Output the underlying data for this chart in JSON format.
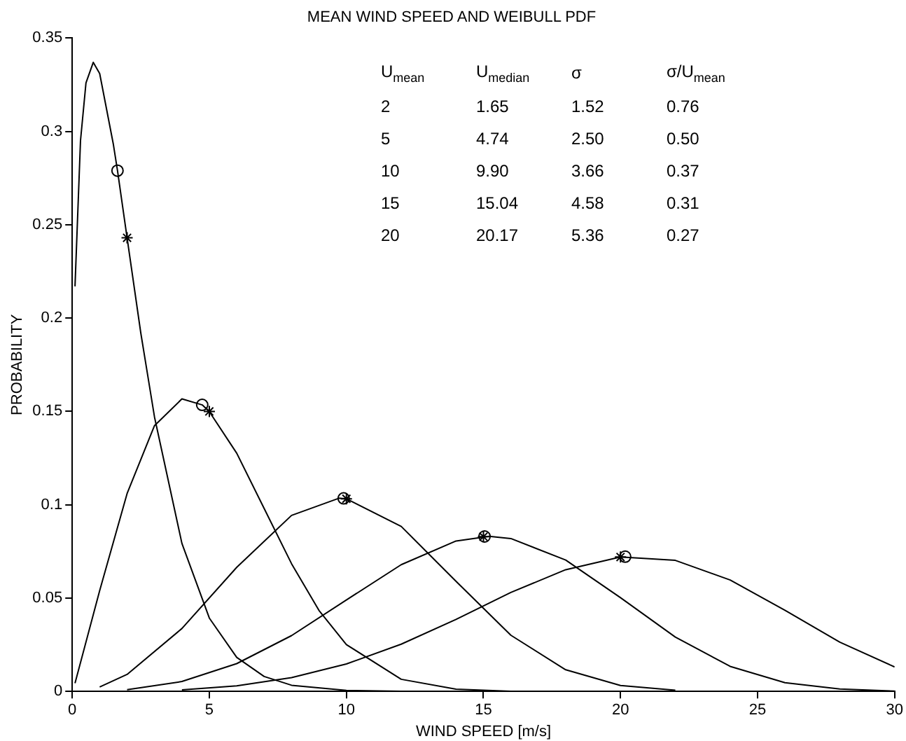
{
  "chart_data": {
    "type": "line",
    "title": "MEAN WIND SPEED AND WEIBULL PDF",
    "xlabel": "WIND SPEED [m/s]",
    "ylabel": "PROBABILITY",
    "xlim": [
      0,
      30
    ],
    "xticks": [
      0,
      5,
      10,
      15,
      20,
      25,
      30
    ],
    "ylim": [
      0,
      0.35
    ],
    "yticks": [
      0,
      0.05,
      0.1,
      0.15,
      0.2,
      0.25,
      0.3,
      0.35
    ],
    "grid": false,
    "legend": false,
    "line_style": "solid",
    "series": [
      {
        "color": "#000000",
        "x": [
          0.1,
          0.3,
          0.5,
          0.765,
          1,
          1.5,
          1.65,
          2,
          2.5,
          3,
          4,
          5,
          6,
          7,
          8,
          10,
          12
        ],
        "values": [
          0.217,
          0.295,
          0.326,
          0.337,
          0.331,
          0.293,
          0.279,
          0.243,
          0.192,
          0.147,
          0.0793,
          0.0393,
          0.0182,
          0.008,
          0.0033,
          0.0005,
          0.0001
        ]
      },
      {
        "color": "#000000",
        "x": [
          0.1,
          1,
          2,
          3,
          4,
          4.74,
          5,
          6,
          7,
          8,
          9,
          10,
          12,
          14,
          16
        ],
        "values": [
          0.0044,
          0.054,
          0.106,
          0.1424,
          0.1567,
          0.1535,
          0.1499,
          0.1276,
          0.098,
          0.0684,
          0.0434,
          0.0251,
          0.0065,
          0.0012,
          0.0001
        ]
      },
      {
        "color": "#000000",
        "x": [
          1,
          2,
          4,
          6,
          8,
          9.73,
          10,
          12,
          14,
          16,
          18,
          20,
          22
        ],
        "values": [
          0.0024,
          0.0091,
          0.0337,
          0.0665,
          0.0943,
          0.1035,
          0.1032,
          0.0884,
          0.059,
          0.0301,
          0.0116,
          0.0032,
          0.0006
        ]
      },
      {
        "color": "#000000",
        "x": [
          2,
          4,
          6,
          8,
          10,
          12,
          14,
          15.21,
          16,
          18,
          20,
          22,
          24,
          26,
          28,
          30
        ],
        "values": [
          0.0009,
          0.0053,
          0.0149,
          0.0299,
          0.049,
          0.0679,
          0.0806,
          0.0831,
          0.0819,
          0.0704,
          0.0502,
          0.0291,
          0.0134,
          0.0047,
          0.0013,
          0.0002
        ]
      },
      {
        "color": "#000000",
        "x": [
          4,
          6,
          8,
          10,
          12,
          14,
          16,
          18,
          20,
          22,
          24,
          26,
          28,
          30
        ],
        "values": [
          0.0008,
          0.003,
          0.0074,
          0.0147,
          0.0253,
          0.0386,
          0.053,
          0.0652,
          0.072,
          0.0702,
          0.0597,
          0.0435,
          0.0264,
          0.0131
        ]
      },
      {
        "type": "scatter",
        "marker": "circle",
        "color": "#000000",
        "x": [
          1.65,
          4.74,
          9.9,
          15.04,
          20.17
        ],
        "values": [
          0.279,
          0.1535,
          0.1034,
          0.083,
          0.0722
        ]
      },
      {
        "type": "scatter",
        "marker": "cross",
        "color": "#000000",
        "x": [
          2,
          5,
          10,
          15,
          20
        ],
        "values": [
          0.243,
          0.15,
          0.1032,
          0.0829,
          0.072
        ]
      }
    ],
    "annotations": [
      "U$_{mean}$\tU$_{median}$\tσ\tσ/U$_{mean}$",
      "2\t1.65\t1.52\t0.76",
      "5\t4.74\t2.50\t0.50",
      "10\t9.90\t3.66\t0.37",
      "15\t15.04\t4.58\t0.31",
      "20\t20.17\t5.36\t0.27"
    ]
  }
}
